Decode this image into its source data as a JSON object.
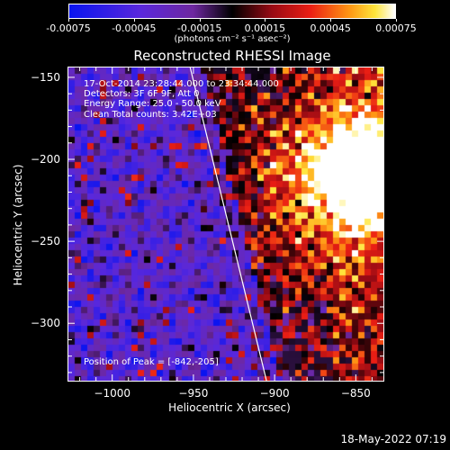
{
  "colorbar": {
    "tick_labels": [
      "-0.00075",
      "-0.00045",
      "-0.00015",
      "0.00015",
      "0.00045",
      "0.00075"
    ],
    "units_label": "(photons cm⁻² s⁻¹ asec⁻²)",
    "range": [
      -0.00075,
      0.00075
    ]
  },
  "title": "Reconstructed RHESSI Image",
  "info": {
    "time": "17-Oct-2014 23:28:44.000 to 23:34:44.000",
    "detectors": "Detectors: 3F 6F 9F, Att 0",
    "energy": "Energy Range: 25.0 - 50.0 keV",
    "clean": "Clean     Total counts: 3.42E+03",
    "peak": "Position of Peak = [-842,-205]"
  },
  "chart_data": {
    "type": "heatmap",
    "title": "Reconstructed RHESSI Image",
    "xlabel": "Heliocentric X (arcsec)",
    "ylabel": "Heliocentric Y (arcsec)",
    "xlim": [
      -1027,
      -833
    ],
    "ylim": [
      -335,
      -144
    ],
    "x_ticks": [
      -1000,
      -950,
      -900,
      -850
    ],
    "y_ticks": [
      -150,
      -200,
      -250,
      -300
    ],
    "x_tick_labels": [
      "-1000",
      "-950",
      "-900",
      "-850"
    ],
    "y_tick_labels": [
      "-150",
      "-200",
      "-250",
      "-300"
    ],
    "peak_position": [
      -842,
      -205
    ],
    "limb_line": [
      [
        -952,
        -144
      ],
      [
        -905,
        -335
      ]
    ]
  },
  "footer": {
    "date": "18-May-2022 07:19"
  },
  "colors": {
    "background": "#000000",
    "axes": "#ffffff"
  }
}
